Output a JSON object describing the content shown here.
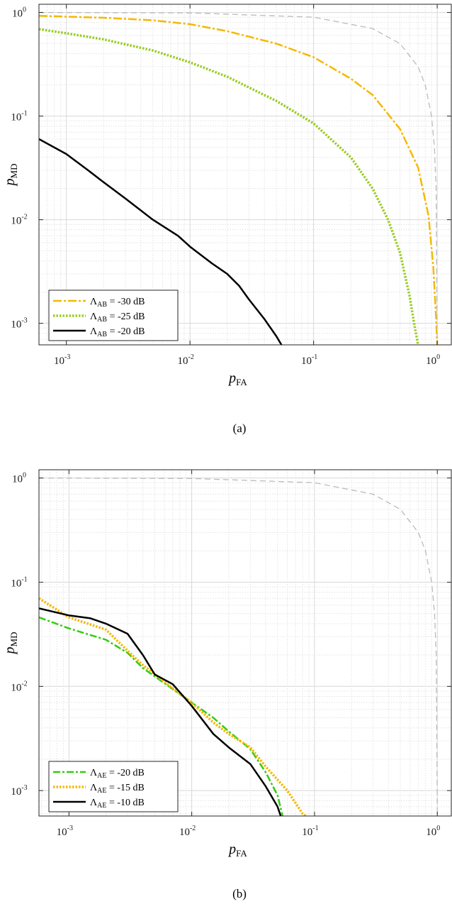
{
  "chart_data": [
    {
      "type": "line",
      "caption": "(a)",
      "xlabel": "p",
      "xlabel_sub": "FA",
      "ylabel": "p",
      "ylabel_sub": "MD",
      "xscale": "log",
      "yscale": "log",
      "xlim": [
        0.0006,
        1.3
      ],
      "ylim": [
        0.00062,
        1.2
      ],
      "x_ticks": [
        {
          "base": "10",
          "exp": "-3",
          "v": 0.001
        },
        {
          "base": "10",
          "exp": "-2",
          "v": 0.01
        },
        {
          "base": "10",
          "exp": "-1",
          "v": 0.1
        },
        {
          "base": "10",
          "exp": "0",
          "v": 1
        }
      ],
      "y_ticks": [
        {
          "base": "10",
          "exp": "-3",
          "v": 0.001
        },
        {
          "base": "10",
          "exp": "-2",
          "v": 0.01
        },
        {
          "base": "10",
          "exp": "-1",
          "v": 0.1
        },
        {
          "base": "10",
          "exp": "0",
          "v": 1
        }
      ],
      "grid": true,
      "legend_position": "bottom-left",
      "series": [
        {
          "name": "-30 dB",
          "legend_sym": "Λ",
          "legend_sub": "AB",
          "color": "#f5b800",
          "dash": "12 3 3 3",
          "width": 2.5,
          "x": [
            0.0006,
            0.001,
            0.002,
            0.005,
            0.01,
            0.02,
            0.05,
            0.1,
            0.2,
            0.3,
            0.5,
            0.7,
            0.85,
            0.93,
            0.98,
            1.0
          ],
          "y": [
            0.93,
            0.91,
            0.89,
            0.84,
            0.77,
            0.66,
            0.5,
            0.37,
            0.23,
            0.16,
            0.075,
            0.032,
            0.011,
            0.0035,
            0.0011,
            0.00062
          ]
        },
        {
          "name": "-25 dB",
          "legend_sym": "Λ",
          "legend_sub": "AB",
          "color": "#99cc22",
          "dash": "2.5 2",
          "width": 3.5,
          "x": [
            0.0006,
            0.001,
            0.002,
            0.005,
            0.01,
            0.02,
            0.05,
            0.1,
            0.2,
            0.3,
            0.4,
            0.5,
            0.6,
            0.65,
            0.7
          ],
          "y": [
            0.69,
            0.63,
            0.55,
            0.43,
            0.33,
            0.24,
            0.14,
            0.085,
            0.04,
            0.02,
            0.01,
            0.0048,
            0.0018,
            0.001,
            0.00062
          ]
        },
        {
          "name": "-20 dB",
          "legend_sym": "Λ",
          "legend_sub": "AB",
          "color": "#000000",
          "dash": "",
          "width": 2.5,
          "x": [
            0.0006,
            0.001,
            0.0015,
            0.002,
            0.003,
            0.005,
            0.008,
            0.01,
            0.015,
            0.02,
            0.025,
            0.03,
            0.04,
            0.05,
            0.055
          ],
          "y": [
            0.06,
            0.043,
            0.03,
            0.023,
            0.016,
            0.01,
            0.007,
            0.0055,
            0.0038,
            0.003,
            0.0023,
            0.0017,
            0.0011,
            0.00075,
            0.00062
          ]
        },
        {
          "name": "",
          "legend_sym": "",
          "legend_sub": "",
          "color": "#bbbbbb",
          "dash": "8 5",
          "width": 1.3,
          "ref": true,
          "x": [
            0.0006,
            0.01,
            0.1,
            0.3,
            0.5,
            0.7,
            0.8,
            0.9,
            0.95,
            0.98,
            1.0
          ],
          "y": [
            0.9994,
            0.99,
            0.9,
            0.7,
            0.5,
            0.3,
            0.2,
            0.1,
            0.05,
            0.02,
            0.00062
          ]
        }
      ]
    },
    {
      "type": "line",
      "caption": "(b)",
      "xlabel": "p",
      "xlabel_sub": "FA",
      "ylabel": "p",
      "ylabel_sub": "MD",
      "xscale": "log",
      "yscale": "log",
      "xlim": [
        0.00057,
        1.3
      ],
      "ylim": [
        0.00057,
        1.2
      ],
      "x_ticks": [
        {
          "base": "10",
          "exp": "-3",
          "v": 0.001
        },
        {
          "base": "10",
          "exp": "-2",
          "v": 0.01
        },
        {
          "base": "10",
          "exp": "-1",
          "v": 0.1
        },
        {
          "base": "10",
          "exp": "0",
          "v": 1
        }
      ],
      "y_ticks": [
        {
          "base": "10",
          "exp": "-3",
          "v": 0.001
        },
        {
          "base": "10",
          "exp": "-2",
          "v": 0.01
        },
        {
          "base": "10",
          "exp": "-1",
          "v": 0.1
        },
        {
          "base": "10",
          "exp": "0",
          "v": 1
        }
      ],
      "grid": true,
      "legend_position": "bottom-left",
      "series": [
        {
          "name": "-20 dB",
          "legend_sym": "Λ",
          "legend_sub": "AE",
          "color": "#33cc11",
          "dash": "10 3 3 3",
          "width": 2.5,
          "x": [
            0.00057,
            0.001,
            0.002,
            0.003,
            0.004,
            0.006,
            0.01,
            0.015,
            0.02,
            0.03,
            0.04,
            0.05,
            0.055
          ],
          "y": [
            0.046,
            0.036,
            0.028,
            0.021,
            0.015,
            0.0107,
            0.007,
            0.005,
            0.0037,
            0.0025,
            0.0015,
            0.0009,
            0.00057
          ]
        },
        {
          "name": "-15 dB",
          "legend_sym": "Λ",
          "legend_sub": "AE",
          "color": "#f5b800",
          "dash": "2.5 2",
          "width": 3.5,
          "x": [
            0.00057,
            0.001,
            0.002,
            0.003,
            0.004,
            0.006,
            0.01,
            0.015,
            0.02,
            0.03,
            0.04,
            0.06,
            0.08,
            0.085
          ],
          "y": [
            0.07,
            0.046,
            0.035,
            0.022,
            0.016,
            0.011,
            0.007,
            0.0045,
            0.0035,
            0.0026,
            0.0017,
            0.001,
            0.0006,
            0.00057
          ]
        },
        {
          "name": "-10 dB",
          "legend_sym": "Λ",
          "legend_sub": "AE",
          "color": "#000000",
          "dash": "",
          "width": 2.5,
          "x": [
            0.00057,
            0.001,
            0.0015,
            0.002,
            0.003,
            0.004,
            0.005,
            0.007,
            0.01,
            0.015,
            0.02,
            0.03,
            0.04,
            0.05,
            0.053
          ],
          "y": [
            0.056,
            0.048,
            0.045,
            0.04,
            0.032,
            0.02,
            0.013,
            0.0105,
            0.0065,
            0.0035,
            0.0026,
            0.0018,
            0.0011,
            0.0007,
            0.00057
          ]
        },
        {
          "name": "",
          "legend_sym": "",
          "legend_sub": "",
          "color": "#bbbbbb",
          "dash": "8 5",
          "width": 1.3,
          "ref": true,
          "x": [
            0.00057,
            0.01,
            0.1,
            0.3,
            0.5,
            0.7,
            0.8,
            0.9,
            0.95,
            0.98,
            1.0
          ],
          "y": [
            0.9994,
            0.99,
            0.9,
            0.7,
            0.5,
            0.3,
            0.2,
            0.1,
            0.05,
            0.02,
            0.00057
          ]
        }
      ]
    }
  ]
}
